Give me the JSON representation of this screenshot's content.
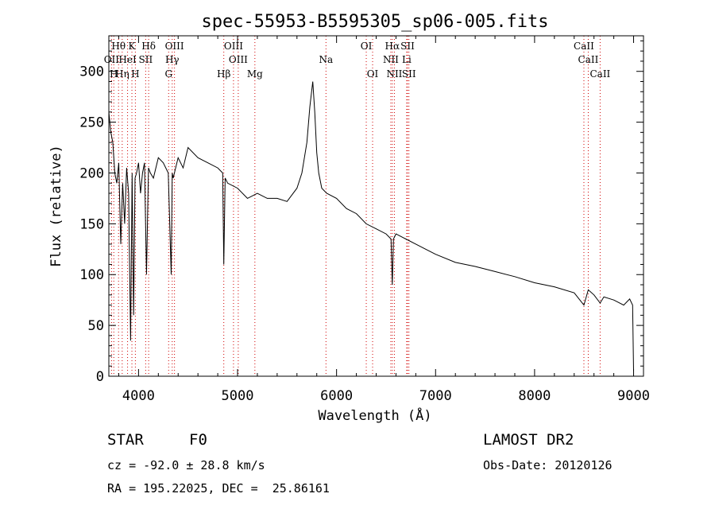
{
  "chart_data": {
    "type": "line",
    "title": "spec-55953-B5595305_sp06-005.fits",
    "xlabel": "Wavelength (Å)",
    "ylabel": "Flux (relative)",
    "xlim": [
      3700,
      9100
    ],
    "ylim": [
      0,
      335
    ],
    "xticks": [
      4000,
      5000,
      6000,
      7000,
      8000,
      9000
    ],
    "yticks": [
      0,
      50,
      100,
      150,
      200,
      250,
      300
    ],
    "grid": false,
    "series": [
      {
        "x": [
          3700,
          3720,
          3740,
          3760,
          3780,
          3800,
          3820,
          3840,
          3860,
          3880,
          3900,
          3920,
          3935,
          3950,
          3965,
          3980,
          4000,
          4020,
          4040,
          4060,
          4080,
          4100,
          4120,
          4150,
          4200,
          4250,
          4300,
          4330,
          4340,
          4350,
          4400,
          4450,
          4500,
          4600,
          4700,
          4800,
          4850,
          4861,
          4875,
          4900,
          5000,
          5100,
          5200,
          5300,
          5400,
          5500,
          5600,
          5650,
          5700,
          5730,
          5760,
          5780,
          5800,
          5820,
          5850,
          5900,
          6000,
          6100,
          6200,
          6300,
          6400,
          6500,
          6550,
          6563,
          6575,
          6600,
          6700,
          6800,
          6900,
          7000,
          7200,
          7400,
          7600,
          7800,
          8000,
          8200,
          8400,
          8498,
          8542,
          8600,
          8662,
          8700,
          8800,
          8900,
          8960,
          8990,
          9000
        ],
        "y": [
          260,
          240,
          230,
          200,
          190,
          210,
          130,
          190,
          150,
          205,
          180,
          35,
          200,
          60,
          195,
          200,
          210,
          180,
          200,
          210,
          100,
          205,
          200,
          195,
          215,
          210,
          200,
          100,
          200,
          195,
          215,
          205,
          225,
          215,
          210,
          205,
          200,
          110,
          195,
          190,
          185,
          175,
          180,
          175,
          175,
          172,
          185,
          200,
          230,
          265,
          290,
          260,
          220,
          200,
          185,
          180,
          175,
          165,
          160,
          150,
          145,
          140,
          135,
          90,
          135,
          140,
          135,
          130,
          125,
          120,
          112,
          108,
          103,
          98,
          92,
          88,
          82,
          70,
          85,
          80,
          72,
          78,
          75,
          70,
          76,
          70,
          5
        ]
      }
    ],
    "lines": {
      "row1": [
        {
          "label": "Hθ",
          "w": 3798
        },
        {
          "label": "K",
          "w": 3933
        },
        {
          "label": "Hδ",
          "w": 4102
        },
        {
          "label": "OIII",
          "w": 4363
        },
        {
          "label": "OIII",
          "w": 4959
        },
        {
          "label": "OI",
          "w": 6300
        },
        {
          "label": "Hα",
          "w": 6563
        },
        {
          "label": "SII",
          "w": 6717
        },
        {
          "label": "CaII",
          "w": 8498
        }
      ],
      "row2": [
        {
          "label": "OII",
          "w": 3727
        },
        {
          "label": "HeI",
          "w": 3889
        },
        {
          "label": "SII",
          "w": 4072
        },
        {
          "label": "Hγ",
          "w": 4340
        },
        {
          "label": "OIII",
          "w": 5007
        },
        {
          "label": "Na",
          "w": 5893
        },
        {
          "label": "NII",
          "w": 6548
        },
        {
          "label": "Li",
          "w": 6708
        },
        {
          "label": "CaII",
          "w": 8542
        }
      ],
      "row3": [
        {
          "label": "H",
          "w": 3750
        },
        {
          "label": "Hη",
          "w": 3835
        },
        {
          "label": "H",
          "w": 3968
        },
        {
          "label": "G",
          "w": 4304
        },
        {
          "label": "Hβ",
          "w": 4861
        },
        {
          "label": "Mg",
          "w": 5175
        },
        {
          "label": "OI",
          "w": 6364
        },
        {
          "label": "NII",
          "w": 6584
        },
        {
          "label": "SII",
          "w": 6731
        },
        {
          "label": "CaII",
          "w": 8662
        }
      ]
    }
  },
  "info": {
    "object_class": "STAR",
    "subclass": "F0",
    "survey": "LAMOST DR2",
    "cz": "cz = -92.0 ± 28.8 km/s",
    "obs_date": "Obs-Date: 20120126",
    "coords": "RA = 195.22025, DEC =  25.86161"
  },
  "colors": {
    "spectrum": "#000000",
    "line_markers": "#d00000",
    "axes": "#000000"
  }
}
